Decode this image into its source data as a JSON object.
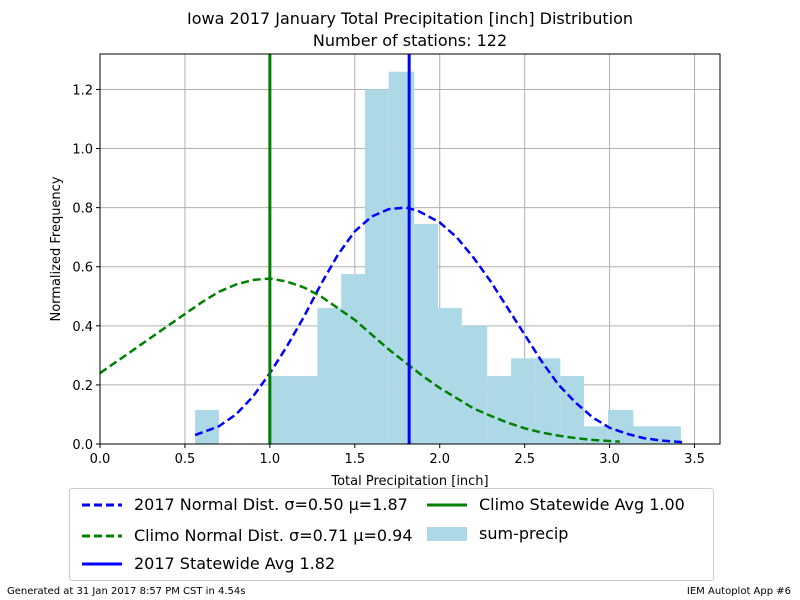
{
  "chart_data": {
    "type": "bar",
    "title": "Iowa 2017 January Total Precipitation [inch] Distribution",
    "subtitle": "Number of stations: 122",
    "xlabel": "Total Precipitation [inch]",
    "ylabel": "Normalized Frequency",
    "xlim": [
      0.0,
      3.65
    ],
    "ylim": [
      0.0,
      1.32
    ],
    "grid": true,
    "legend_position": "bottom",
    "x_ticks": [
      "0.0",
      "0.5",
      "1.0",
      "1.5",
      "2.0",
      "2.5",
      "3.0",
      "3.5"
    ],
    "y_ticks": [
      "0.0",
      "0.2",
      "0.4",
      "0.6",
      "0.8",
      "1.0",
      "1.2"
    ],
    "histogram": {
      "name": "sum-precip",
      "color": "#add8e6",
      "bin_edges": [
        0.56,
        0.7,
        0.85,
        0.99,
        1.13,
        1.28,
        1.42,
        1.56,
        1.7,
        1.85,
        1.99,
        2.13,
        2.28,
        2.42,
        2.56,
        2.71,
        2.85,
        2.99,
        3.14,
        3.28,
        3.42
      ],
      "values": [
        0.115,
        0.0,
        0.0,
        0.23,
        0.23,
        0.46,
        0.575,
        1.2,
        1.26,
        0.745,
        0.46,
        0.4,
        0.23,
        0.29,
        0.29,
        0.23,
        0.06,
        0.115,
        0.06,
        0.06
      ]
    },
    "series": [
      {
        "name": "2017 Normal Dist. σ=0.50 μ=1.87",
        "color": "#0000ff",
        "style": "dashed",
        "x": [
          0.56,
          0.7,
          0.8,
          0.9,
          1.0,
          1.1,
          1.2,
          1.3,
          1.4,
          1.5,
          1.6,
          1.7,
          1.8,
          1.87,
          2.0,
          2.1,
          2.2,
          2.3,
          2.4,
          2.5,
          2.6,
          2.7,
          2.8,
          2.9,
          3.0,
          3.1,
          3.2,
          3.3,
          3.43
        ],
        "y": [
          0.03,
          0.06,
          0.1,
          0.16,
          0.24,
          0.33,
          0.43,
          0.54,
          0.64,
          0.72,
          0.77,
          0.795,
          0.8,
          0.79,
          0.75,
          0.7,
          0.63,
          0.55,
          0.46,
          0.37,
          0.28,
          0.2,
          0.14,
          0.09,
          0.055,
          0.035,
          0.02,
          0.012,
          0.006
        ]
      },
      {
        "name": "Climo Normal Dist. σ=0.71 μ=0.94",
        "color": "#008000",
        "style": "dashed",
        "x": [
          0.0,
          0.1,
          0.2,
          0.3,
          0.4,
          0.5,
          0.6,
          0.7,
          0.8,
          0.9,
          1.0,
          1.1,
          1.2,
          1.3,
          1.4,
          1.5,
          1.6,
          1.7,
          1.8,
          1.9,
          2.0,
          2.1,
          2.2,
          2.3,
          2.4,
          2.5,
          2.6,
          2.7,
          2.8,
          2.9,
          3.06
        ],
        "y": [
          0.24,
          0.28,
          0.32,
          0.36,
          0.4,
          0.44,
          0.48,
          0.515,
          0.54,
          0.555,
          0.56,
          0.55,
          0.53,
          0.5,
          0.46,
          0.42,
          0.37,
          0.32,
          0.275,
          0.23,
          0.19,
          0.155,
          0.12,
          0.095,
          0.072,
          0.053,
          0.039,
          0.028,
          0.02,
          0.014,
          0.008
        ]
      }
    ],
    "vlines": [
      {
        "name": "2017 Statewide Avg 1.82",
        "x": 1.82,
        "color": "#0000ff"
      },
      {
        "name": "Climo Statewide Avg 1.00",
        "x": 1.0,
        "color": "#008000"
      }
    ]
  },
  "legend": {
    "item1": "2017 Normal Dist. σ=0.50 μ=1.87",
    "item2": "Climo Normal Dist. σ=0.71 μ=0.94",
    "item3": "2017 Statewide Avg 1.82",
    "item4": "Climo Statewide Avg 1.00",
    "item5": "sum-precip"
  },
  "footer": {
    "left": "Generated at 31 Jan 2017 8:57 PM CST in 4.54s",
    "right": "IEM Autoplot App #6"
  }
}
